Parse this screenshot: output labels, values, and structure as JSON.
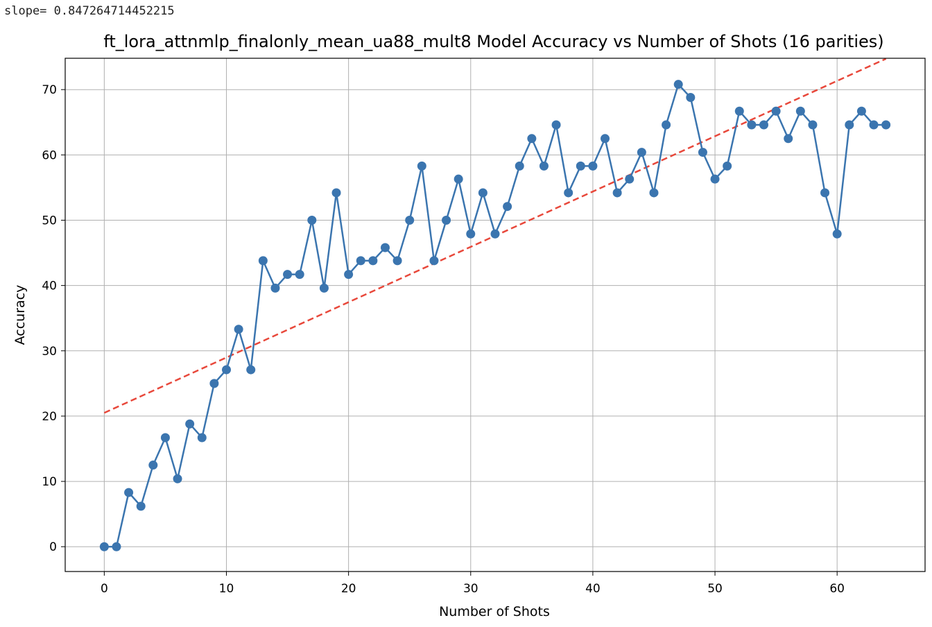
{
  "console": {
    "output": "slope= 0.847264714452215"
  },
  "chart_data": {
    "type": "line",
    "title": "ft_lora_attnmlp_finalonly_mean_ua88_mult8 Model Accuracy vs Number of Shots (16 parities)",
    "xlabel": "Number of Shots",
    "ylabel": "Accuracy",
    "xlim": [
      -3.2,
      67.2
    ],
    "ylim": [
      -3.8,
      74.8
    ],
    "xticks": [
      0,
      10,
      20,
      30,
      40,
      50,
      60
    ],
    "yticks": [
      0,
      10,
      20,
      30,
      40,
      50,
      60,
      70
    ],
    "grid": true,
    "series": [
      {
        "color": "#3b75af",
        "marker": "circle",
        "x": [
          0,
          1,
          2,
          3,
          4,
          5,
          6,
          7,
          8,
          9,
          10,
          11,
          12,
          13,
          14,
          15,
          16,
          17,
          18,
          19,
          20,
          21,
          22,
          23,
          24,
          25,
          26,
          27,
          28,
          29,
          30,
          31,
          32,
          33,
          34,
          35,
          36,
          37,
          38,
          39,
          40,
          41,
          42,
          43,
          44,
          45,
          46,
          47,
          48,
          49,
          50,
          51,
          52,
          53,
          54,
          55,
          56,
          57,
          58,
          59,
          60,
          61,
          62,
          63,
          64
        ],
        "y": [
          0,
          0,
          8.3,
          6.2,
          12.5,
          16.7,
          10.4,
          18.8,
          16.7,
          25,
          27.1,
          33.3,
          27.1,
          43.8,
          39.6,
          41.7,
          41.7,
          50,
          39.6,
          54.2,
          41.7,
          43.8,
          43.8,
          45.8,
          43.8,
          50,
          58.3,
          43.8,
          50,
          56.3,
          47.9,
          54.2,
          47.9,
          52.1,
          58.3,
          62.5,
          58.3,
          64.6,
          54.2,
          58.3,
          58.3,
          62.5,
          54.2,
          56.3,
          60.4,
          54.2,
          64.6,
          70.8,
          68.8,
          60.4,
          56.3,
          58.3,
          66.7,
          64.6,
          64.6,
          66.7,
          62.5,
          66.7,
          64.6,
          54.2,
          47.9,
          64.6,
          66.7,
          64.6,
          64.6
        ]
      }
    ],
    "trendline": {
      "color": "#e8483b",
      "style": "dashed",
      "slope": 0.847264714452215,
      "intercept": 20.5,
      "x_range": [
        0,
        64
      ]
    }
  }
}
